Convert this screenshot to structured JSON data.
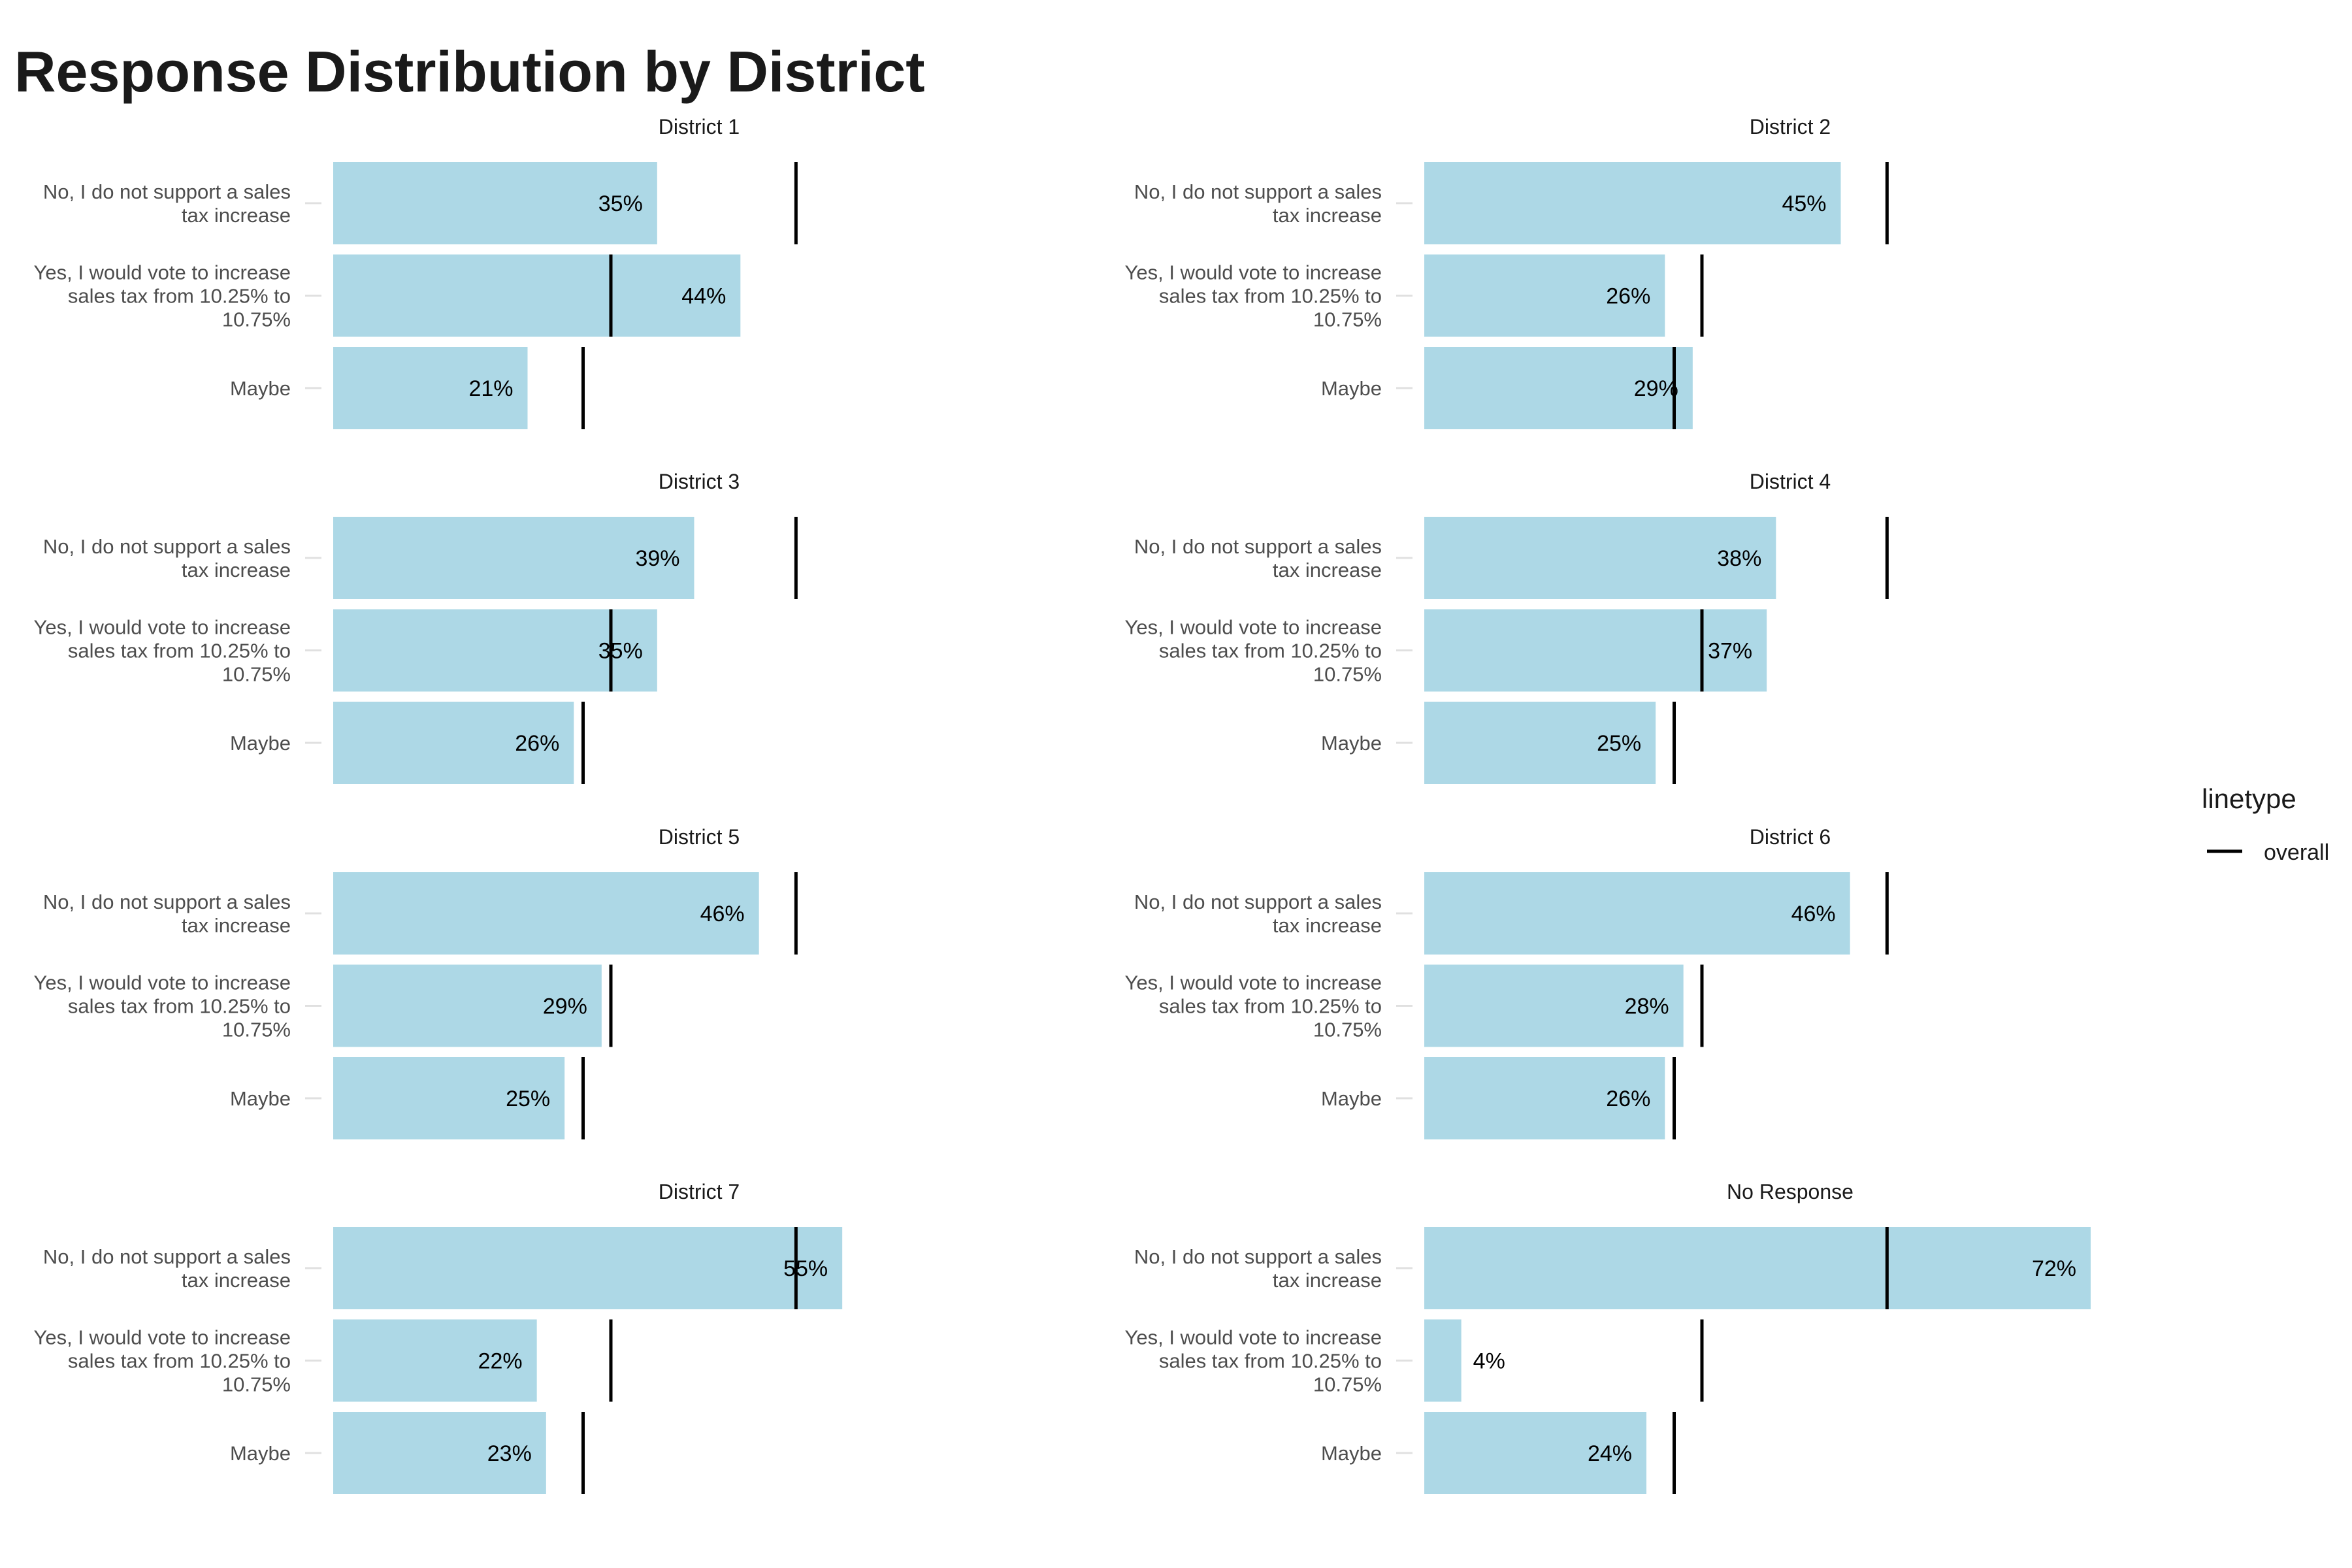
{
  "chart_data": {
    "type": "bar",
    "title": "Response Distribution by District",
    "orientation": "horizontal",
    "categories": [
      "No, I do not support a sales tax increase",
      "Yes, I would vote to increase sales tax from 10.25% to 10.75%",
      "Maybe"
    ],
    "category_lines": [
      [
        "No, I do not support a sales",
        "tax increase"
      ],
      [
        "Yes, I would vote to increase",
        "sales tax from 10.25% to",
        "10.75%"
      ],
      [
        "Maybe"
      ]
    ],
    "overall": [
      0.5,
      0.3,
      0.27
    ],
    "panels": [
      {
        "name": "District 1",
        "values": [
          0.35,
          0.44,
          0.21
        ],
        "labels": [
          "35%",
          "44%",
          "21%"
        ]
      },
      {
        "name": "District 2",
        "values": [
          0.45,
          0.26,
          0.29
        ],
        "labels": [
          "45%",
          "26%",
          "29%"
        ]
      },
      {
        "name": "District 3",
        "values": [
          0.39,
          0.35,
          0.26
        ],
        "labels": [
          "39%",
          "35%",
          "26%"
        ]
      },
      {
        "name": "District 4",
        "values": [
          0.38,
          0.37,
          0.25
        ],
        "labels": [
          "38%",
          "37%",
          "25%"
        ]
      },
      {
        "name": "District 5",
        "values": [
          0.46,
          0.29,
          0.25
        ],
        "labels": [
          "46%",
          "29%",
          "25%"
        ]
      },
      {
        "name": "District 6",
        "values": [
          0.46,
          0.28,
          0.26
        ],
        "labels": [
          "46%",
          "28%",
          "26%"
        ]
      },
      {
        "name": "District 7",
        "values": [
          0.55,
          0.22,
          0.23
        ],
        "labels": [
          "55%",
          "22%",
          "23%"
        ]
      },
      {
        "name": "No Response",
        "values": [
          0.72,
          0.04,
          0.24
        ],
        "labels": [
          "72%",
          "4%",
          "24%"
        ]
      }
    ],
    "xlim": [
      0,
      0.72
    ],
    "bar_color": "#add8e6",
    "line_color": "#000000",
    "grid": false,
    "legend": {
      "title": "linetype",
      "entries": [
        "overall"
      ],
      "position": "right"
    }
  }
}
